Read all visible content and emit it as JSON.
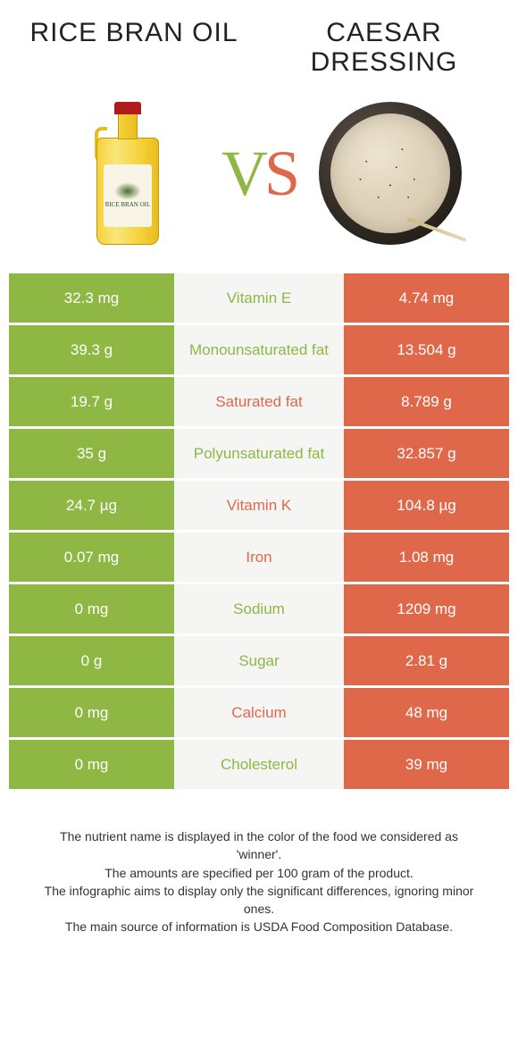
{
  "left_title": "RICE BRAN OIL",
  "right_title": "CAESAR DRESSING",
  "left_color": "#8eb843",
  "right_color": "#e0684a",
  "mid_bg": "#f5f5f3",
  "bottle_label_text": "RICE BRAN OIL",
  "rows": [
    {
      "left": "32.3 mg",
      "name": "Vitamin E",
      "right": "4.74 mg",
      "winner": "left"
    },
    {
      "left": "39.3 g",
      "name": "Monounsaturated fat",
      "right": "13.504 g",
      "winner": "left"
    },
    {
      "left": "19.7 g",
      "name": "Saturated fat",
      "right": "8.789 g",
      "winner": "right"
    },
    {
      "left": "35 g",
      "name": "Polyunsaturated fat",
      "right": "32.857 g",
      "winner": "left"
    },
    {
      "left": "24.7 µg",
      "name": "Vitamin K",
      "right": "104.8 µg",
      "winner": "right"
    },
    {
      "left": "0.07 mg",
      "name": "Iron",
      "right": "1.08 mg",
      "winner": "right"
    },
    {
      "left": "0 mg",
      "name": "Sodium",
      "right": "1209 mg",
      "winner": "left"
    },
    {
      "left": "0 g",
      "name": "Sugar",
      "right": "2.81 g",
      "winner": "left"
    },
    {
      "left": "0 mg",
      "name": "Calcium",
      "right": "48 mg",
      "winner": "right"
    },
    {
      "left": "0 mg",
      "name": "Cholesterol",
      "right": "39 mg",
      "winner": "left"
    }
  ],
  "footer_lines": [
    "The nutrient name is displayed in the color of the food we considered as 'winner'.",
    "The amounts are specified per 100 gram of the product.",
    "The infographic aims to display only the significant differences, ignoring minor ones.",
    "The main source of information is USDA Food Composition Database."
  ]
}
